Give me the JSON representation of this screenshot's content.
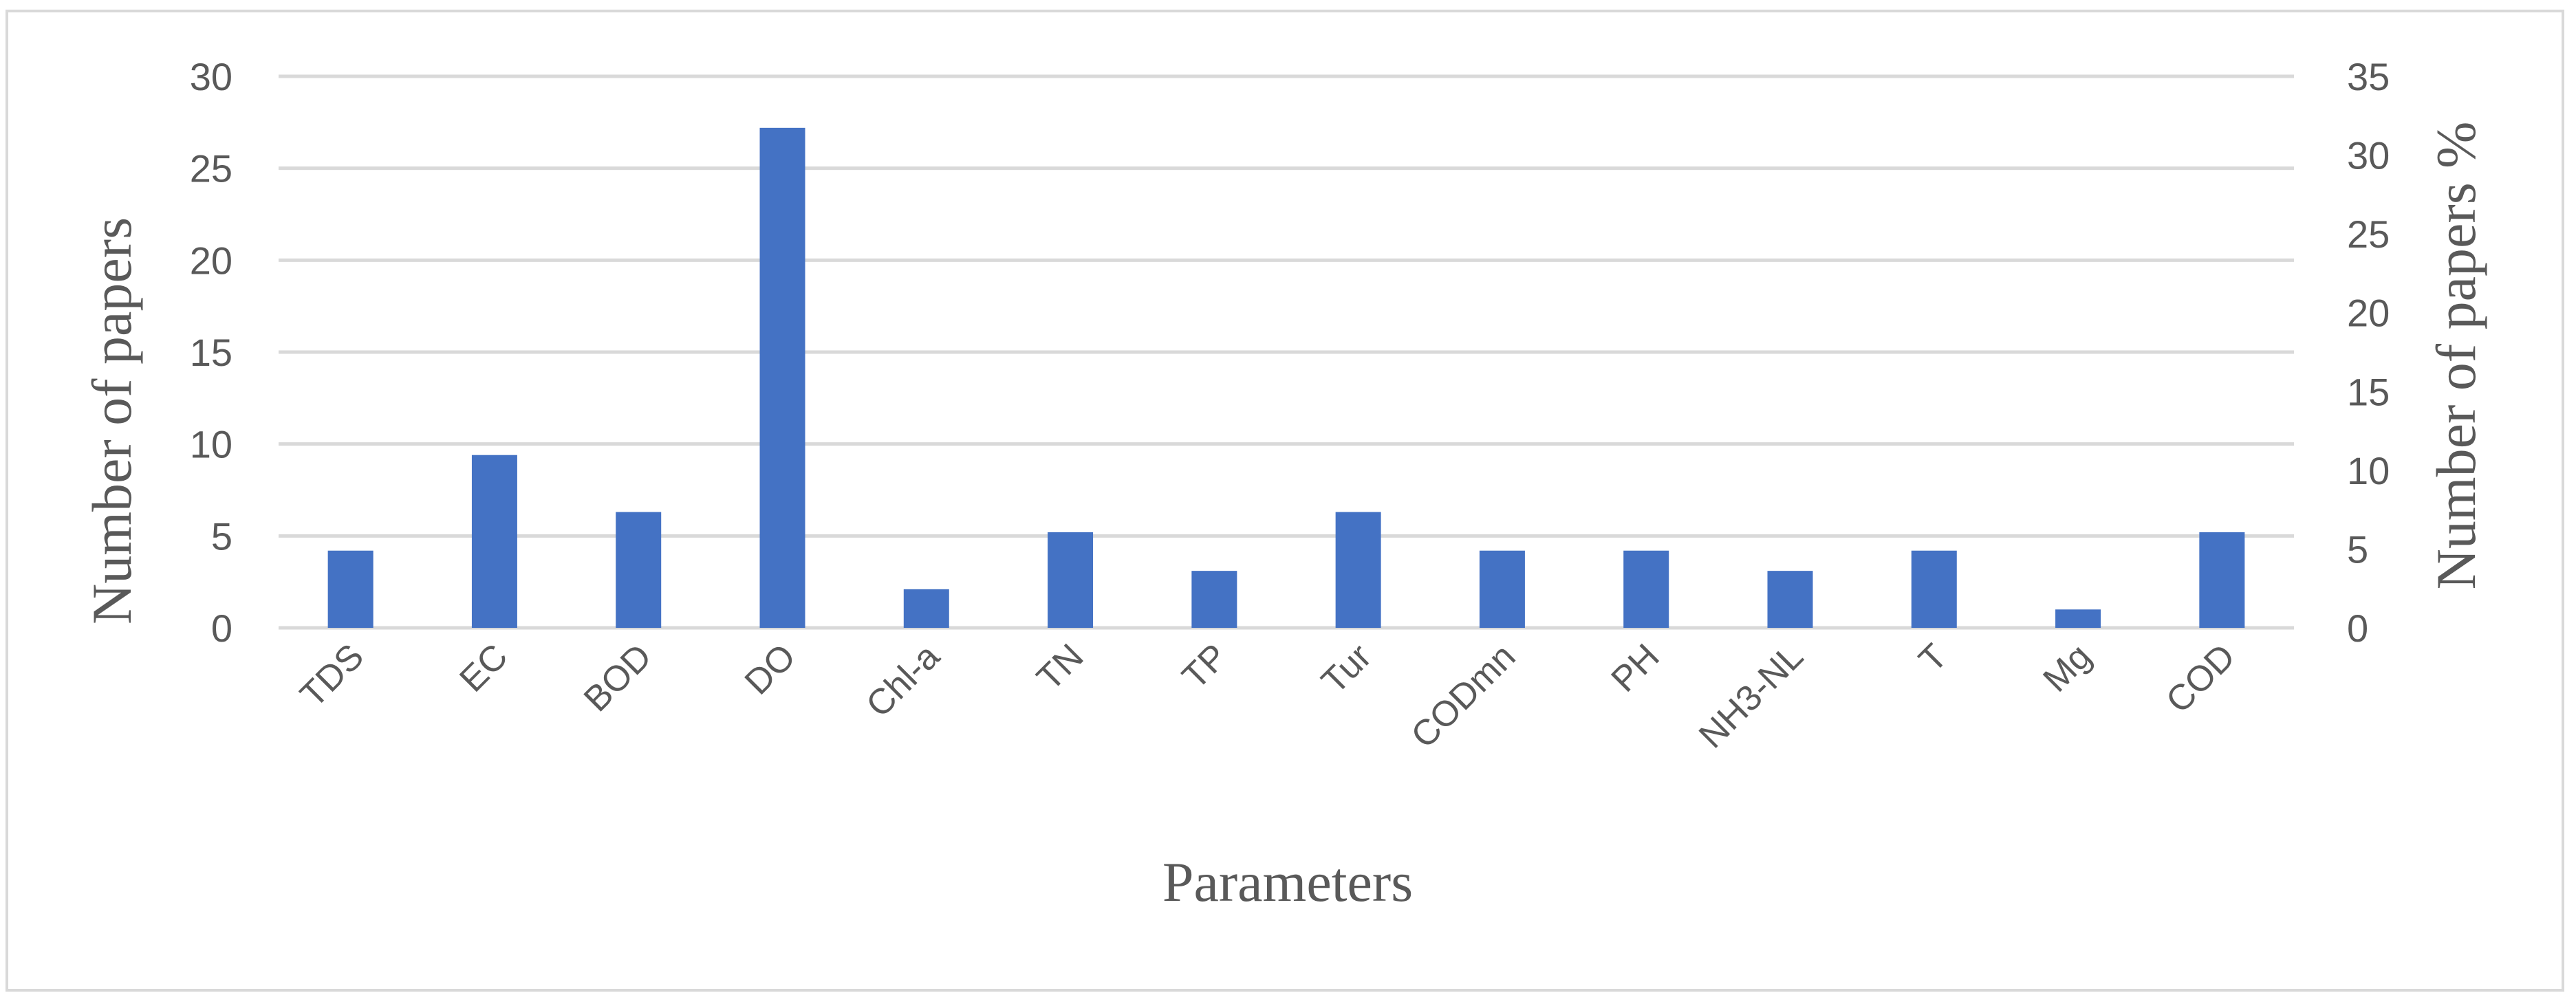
{
  "chart_data": {
    "type": "bar",
    "categories": [
      "TDS",
      "EC",
      "BOD",
      "DO",
      "Chl-a",
      "TN",
      "TP",
      "Tur",
      "CODmn",
      "PH",
      "NH3-NL",
      "T",
      "Mg",
      "COD"
    ],
    "values": [
      4.2,
      9.4,
      6.3,
      27.2,
      2.1,
      5.2,
      3.1,
      6.3,
      4.2,
      4.2,
      3.1,
      4.2,
      1.0,
      5.2
    ],
    "xlabel": "Parameters",
    "ylabel": "Number of papers",
    "ylabel_right": "Number of papers %",
    "ylim": [
      0,
      30
    ],
    "ylim_right": [
      0,
      35
    ],
    "yticks": [
      0,
      5,
      10,
      15,
      20,
      25,
      30
    ],
    "yticks_right": [
      0,
      5,
      10,
      15,
      20,
      25,
      30,
      35
    ],
    "grid": true,
    "bar_color": "#4472c4",
    "grid_color": "#d9d9d9",
    "text_color": "#595959"
  }
}
